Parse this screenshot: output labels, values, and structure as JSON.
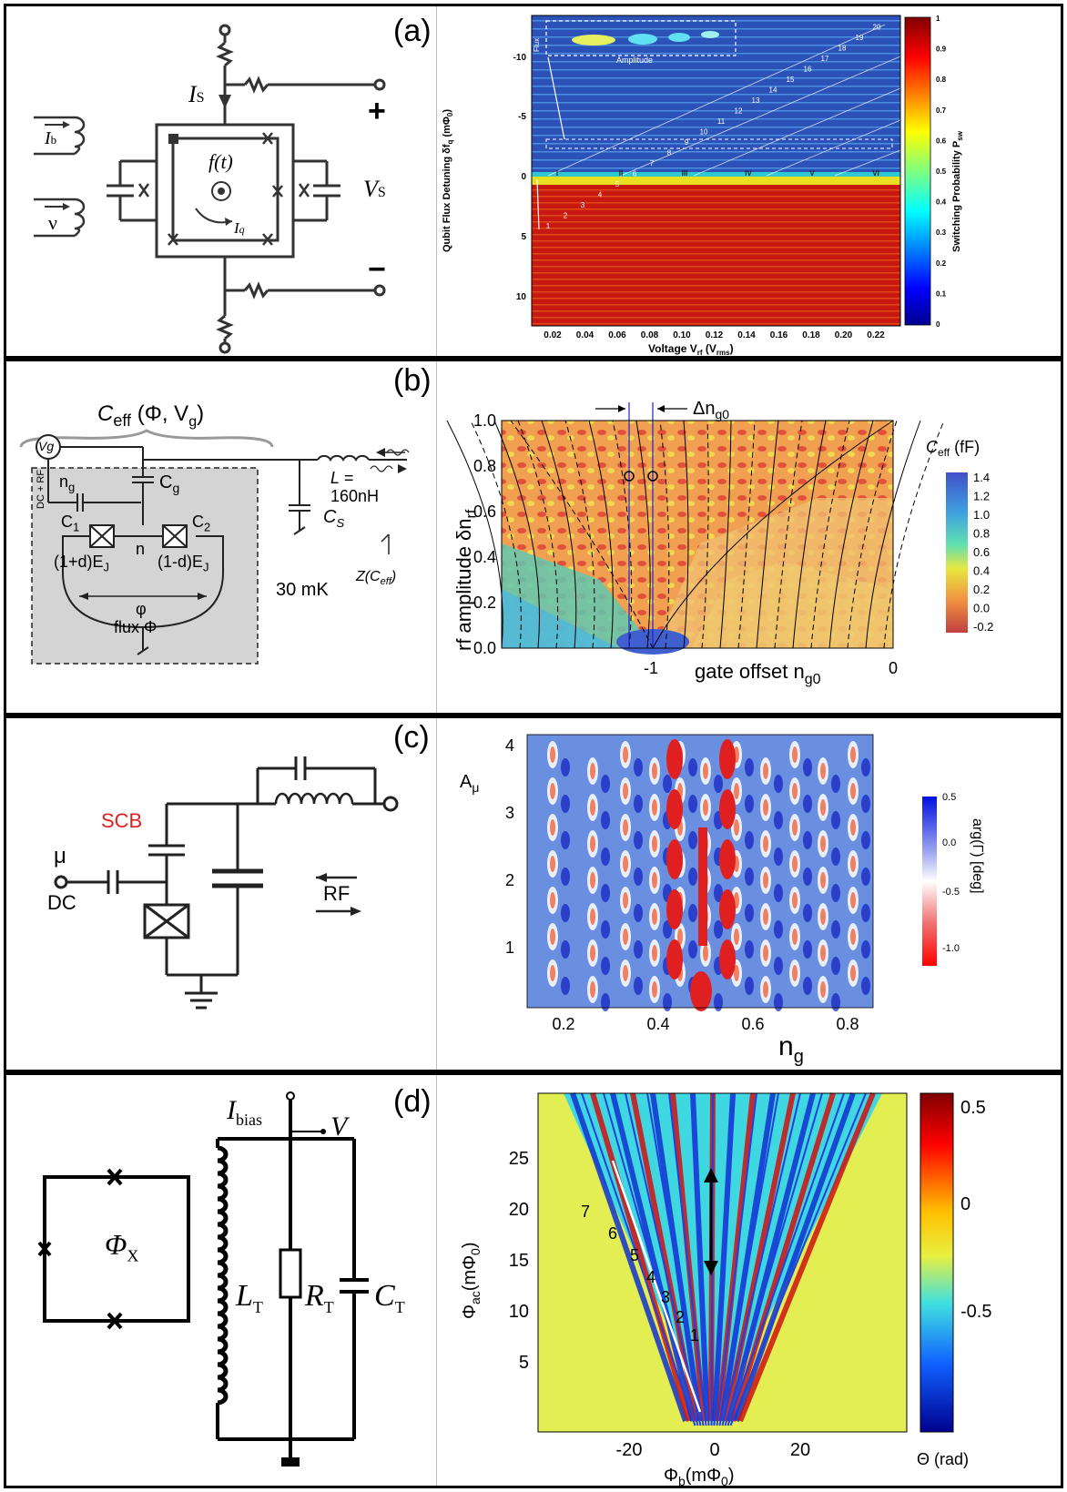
{
  "panels": [
    {
      "id": "a",
      "label": "(a)"
    },
    {
      "id": "b",
      "label": "(b)"
    },
    {
      "id": "c",
      "label": "(c)"
    },
    {
      "id": "d",
      "label": "(d)"
    }
  ],
  "a": {
    "circuit": {
      "is": "I",
      "is_sub": "S",
      "ib": "I",
      "ib_sub": "b",
      "nu": "ν",
      "ft": "f(t)",
      "iq": "I",
      "iq_sub": "q",
      "vs": "V",
      "vs_sub": "S",
      "plus": "+",
      "minus": "−"
    },
    "xlabel": "Voltage V",
    "xlabel_sub": "rf",
    "xlabel_tail": " (V",
    "xlabel_sub2": "rms",
    "xlabel_end": ")",
    "ylabel": "Qubit Flux Detuning δf",
    "ylabel_sub": "q",
    "ylabel_tail": " (mΦ",
    "ylabel_sub2": "0",
    "ylabel_end": ")",
    "cbar_label": "Switching Probability P",
    "cbar_sub": "sw",
    "xticks": [
      "0.02",
      "0.04",
      "0.06",
      "0.08",
      "0.10",
      "0.12",
      "0.14",
      "0.16",
      "0.18",
      "0.20",
      "0.22"
    ],
    "yticks": [
      "-10",
      "-5",
      "0",
      "5",
      "10"
    ],
    "cbar_ticks": [
      "0",
      "0.1",
      "0.2",
      "0.3",
      "0.4",
      "0.5",
      "0.6",
      "0.7",
      "0.8",
      "0.9",
      "1"
    ],
    "inset_flux": "Flux",
    "inset_amp": "Amplitude",
    "roman": [
      "I",
      "II",
      "III",
      "IV",
      "V",
      "VI"
    ],
    "nums": [
      "1",
      "2",
      "3",
      "4",
      "5",
      "6",
      "7",
      "8",
      "9",
      "10",
      "11",
      "12",
      "13",
      "14",
      "15",
      "16",
      "17",
      "18",
      "19",
      "20"
    ]
  },
  "b": {
    "ceff_title": "C",
    "ceff_sub": "eff",
    "ceff_args": " (Φ, V",
    "ceff_args_sub": "g",
    "ceff_close": ")",
    "vg": "Vg",
    "ng": "n",
    "ng_sub": "g",
    "cg": "C",
    "cg_sub": "g",
    "c1": "C",
    "c1_sub": "1",
    "c2": "C",
    "c2_sub": "2",
    "n": "n",
    "ej1": "(1+d)E",
    "ej1_sub": "J",
    "ej2": "(1-d)E",
    "ej2_sub": "J",
    "phi": "φ",
    "flux": "flux Φ",
    "dcrf": "DC + RF",
    "l": "L =",
    "l_val": "160nH",
    "cs": "C",
    "cs_sub": "S",
    "z": "Z(C",
    "z_sub": "eff",
    "z_close": ")",
    "temp": "30 mK",
    "ylabel": "rf amplitude  δn",
    "ylabel_sub": "rf",
    "xlabel": "gate offset n",
    "xlabel_sub": "g0",
    "dn": "Δn",
    "dn_sub": "g0",
    "yticks": [
      "0.0",
      "0.2",
      "0.4",
      "0.6",
      "0.8",
      "1.0"
    ],
    "xticks": [
      "-1",
      "0"
    ],
    "cbar_title": "C",
    "cbar_sub": "eff",
    "cbar_unit": " (fF)",
    "cbar_ticks": [
      "1.4",
      "1.2",
      "1.0",
      "0.8",
      "0.6",
      "0.4",
      "0.2",
      "0.0",
      "-0.2"
    ]
  },
  "c": {
    "scb": "SCB",
    "mu": "μ",
    "dc": "DC",
    "rf": "RF",
    "ylabel": "A",
    "ylabel_sub": "μ",
    "xlabel": "n",
    "xlabel_sub": "g",
    "yticks": [
      "1",
      "2",
      "3",
      "4"
    ],
    "xticks": [
      "0.2",
      "0.4",
      "0.6",
      "0.8"
    ],
    "cbar_ticks": [
      "0.5",
      "0.0",
      "-0.5",
      "-1.0"
    ],
    "cbar_label": "arg(Γ) [deg]"
  },
  "d": {
    "phix": "Φ",
    "phix_sub": "X",
    "ibias": "I",
    "ibias_sub": "bias",
    "v": "V",
    "lt": "L",
    "lt_sub": "T",
    "rt": "R",
    "rt_sub": "T",
    "ct": "C",
    "ct_sub": "T",
    "ylabel": "Φ",
    "ylabel_sub": "ac",
    "ylabel_tail": "(mΦ",
    "ylabel_sub2": "0",
    "ylabel_end": ")",
    "xlabel": "Φ",
    "xlabel_sub": "b",
    "xlabel_tail": "(mΦ",
    "xlabel_sub2": "0",
    "xlabel_end": ")",
    "yticks": [
      "5",
      "10",
      "15",
      "20",
      "25"
    ],
    "xticks": [
      "-20",
      "0",
      "20"
    ],
    "cbar_ticks": [
      "0.5",
      "0",
      "-0.5"
    ],
    "cbar_label": "Θ (rad)",
    "nums": [
      "1",
      "2",
      "3",
      "4",
      "5",
      "6",
      "7"
    ]
  }
}
